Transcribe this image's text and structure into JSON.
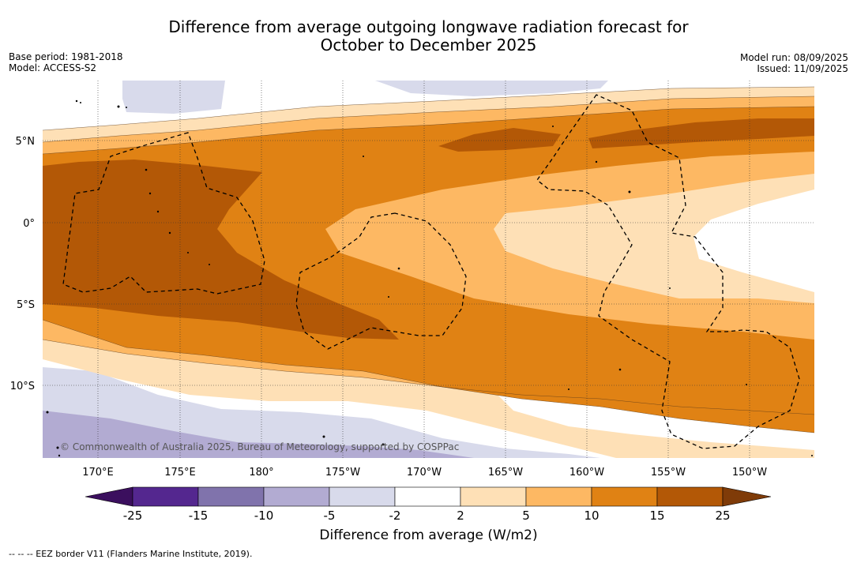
{
  "title_line1": "Difference from average outgoing longwave radiation forecast for",
  "title_line2": "October to December 2025",
  "meta_left": {
    "base_period": "Base period: 1981-2018",
    "model": "Model: ACCESS-S2"
  },
  "meta_right": {
    "model_run": "Model run: 08/09/2025",
    "issued": "Issued: 11/09/2025"
  },
  "map": {
    "lat_labels": [
      "5°N",
      "0°",
      "5°S",
      "10°S"
    ],
    "lon_labels": [
      "170°E",
      "175°E",
      "180°",
      "175°W",
      "170°W",
      "165°W",
      "160°W",
      "155°W",
      "150°W"
    ],
    "copyright": "© Commonwealth of Australia 2025, Bureau of Meteorology, supported by COSPPac"
  },
  "colorbar": {
    "ticks": [
      "-25",
      "-15",
      "-10",
      "-5",
      "-2",
      "2",
      "5",
      "10",
      "15",
      "25"
    ],
    "colors": [
      "#3b0f5e",
      "#54278f",
      "#8073ac",
      "#b2abd2",
      "#d8daeb",
      "#ffffff",
      "#fee0b6",
      "#fdb863",
      "#e08214",
      "#b35806",
      "#7f3b08"
    ],
    "title": "Difference from average (W/m2)"
  },
  "footer": "-- -- -- EEZ border V11 (Flanders Marine Institute, 2019)."
}
